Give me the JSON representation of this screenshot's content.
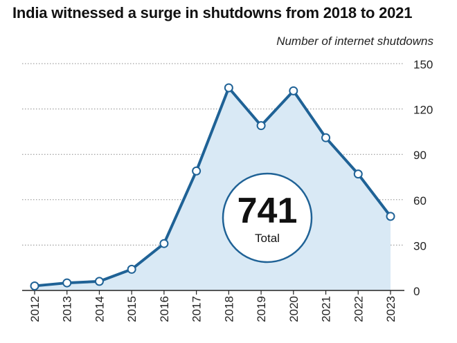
{
  "chart_data": {
    "type": "area",
    "title": "India witnessed a surge in shutdowns from 2018 to 2021",
    "subtitle": "Number of internet shutdowns",
    "x": [
      "2012",
      "2013",
      "2014",
      "2015",
      "2016",
      "2017",
      "2018",
      "2019",
      "2020",
      "2021",
      "2022",
      "2023"
    ],
    "series": [
      {
        "values": [
          3,
          5,
          6,
          14,
          31,
          79,
          134,
          109,
          132,
          101,
          77,
          49
        ]
      }
    ],
    "ylim": [
      0,
      150
    ],
    "yticks": [
      0,
      30,
      60,
      90,
      120,
      150
    ],
    "grid": true,
    "annotation": {
      "value": "741",
      "label": "Total"
    },
    "colors": {
      "line": "#1f6296",
      "fill": "#d9e9f5",
      "marker_fill": "#ffffff",
      "grid": "#8a8a8a"
    }
  }
}
